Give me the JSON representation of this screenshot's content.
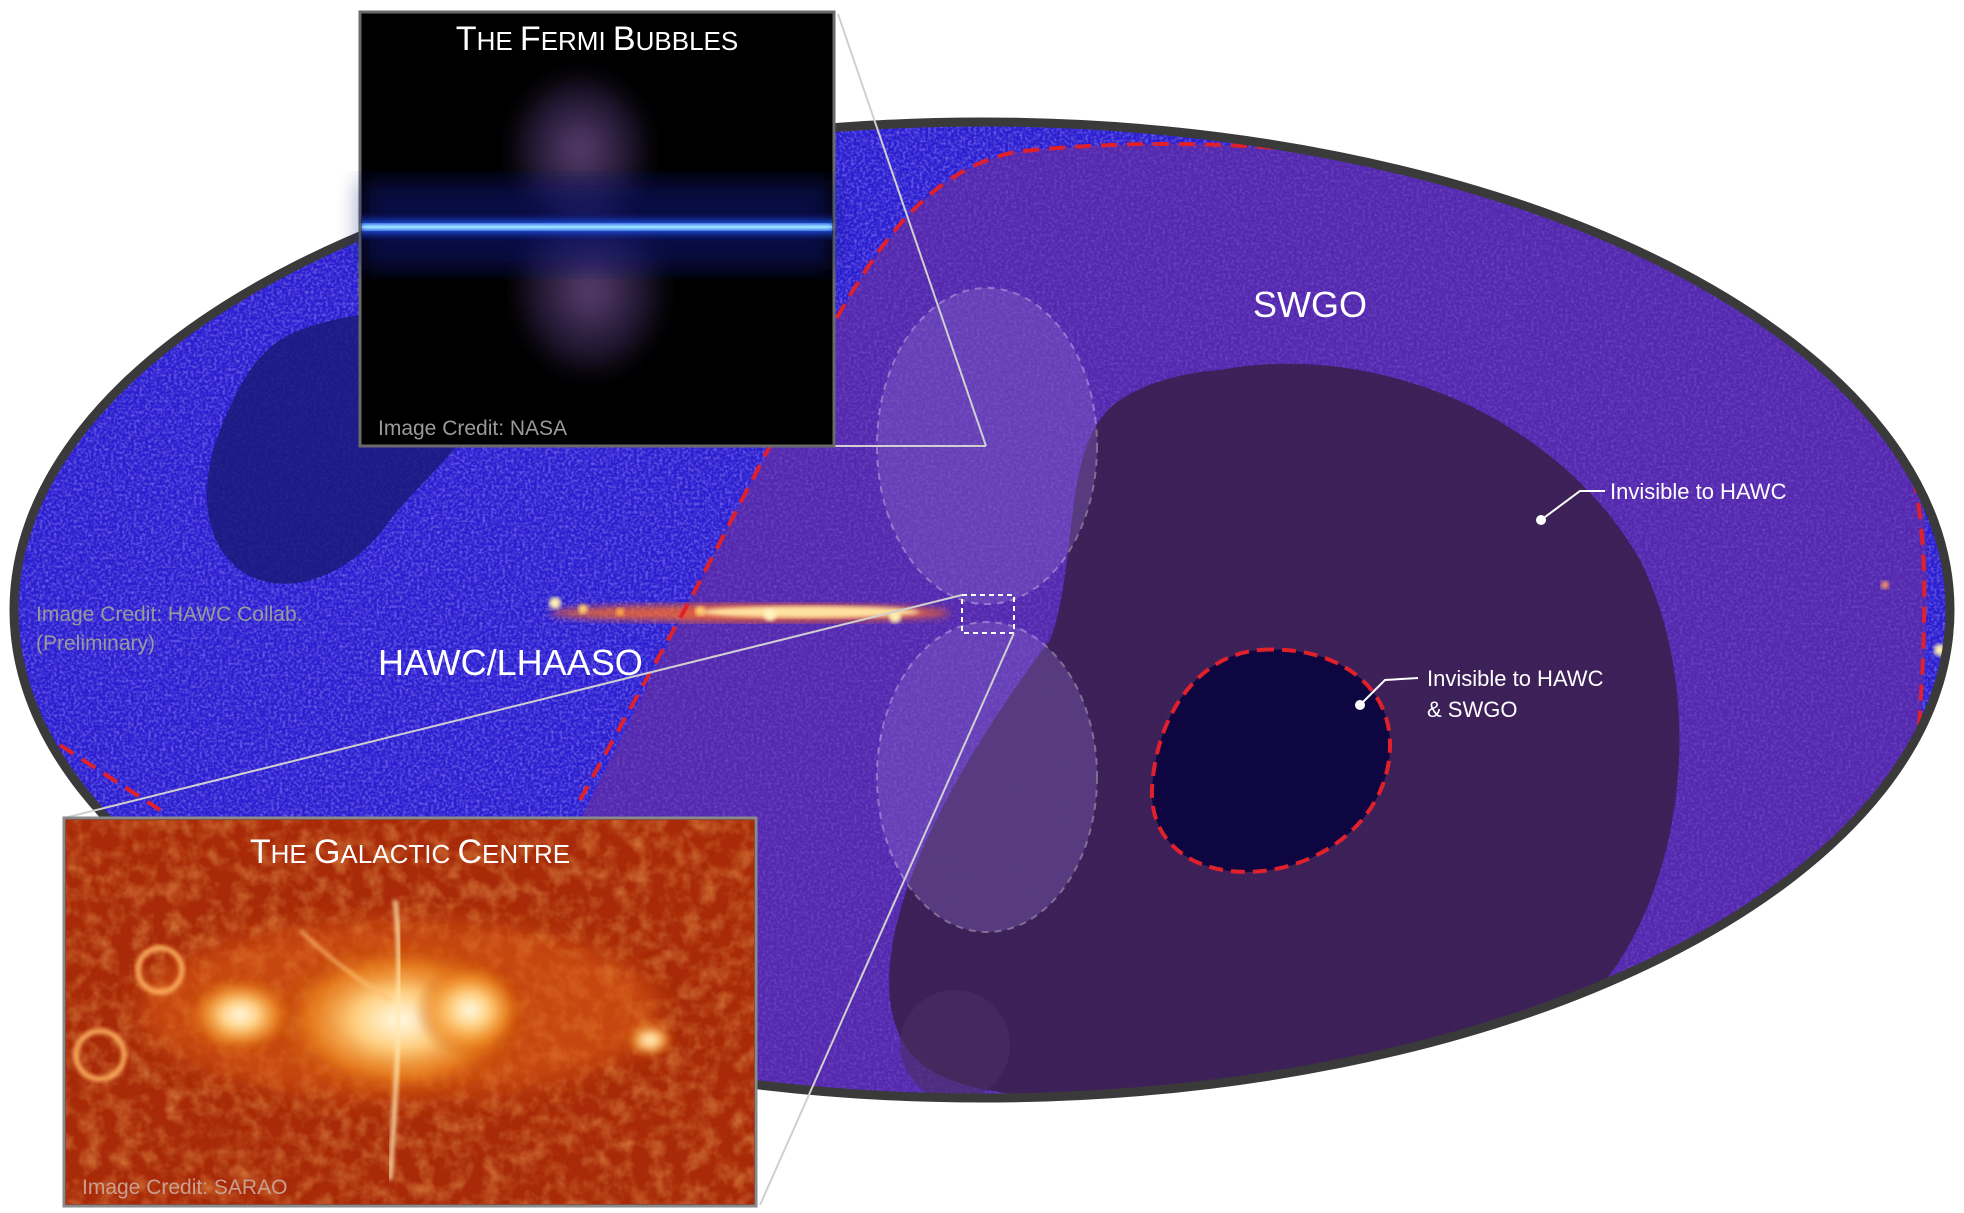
{
  "labels": {
    "swgo": "SWGO",
    "hawc_lhaaso": "HAWC/LHAASO",
    "invisible_hawc": "Invisible to HAWC",
    "invisible_both_line1": "Invisible to HAWC",
    "invisible_both_line2": "& SWGO"
  },
  "credits": {
    "hawc_line1": "Image Credit: HAWC Collab.",
    "hawc_line2": "(Preliminary)",
    "nasa": "Image Credit: NASA",
    "sarao": "Image Credit: SARAO"
  },
  "insets": {
    "fermi": {
      "title_prefix_1": "T",
      "title_rest_1": "HE ",
      "title_prefix_2": "F",
      "title_rest_2": "ERMI ",
      "title_prefix_3": "B",
      "title_rest_3": "UBBLES"
    },
    "galactic": {
      "title_prefix_1": "T",
      "title_rest_1": "HE ",
      "title_prefix_2": "G",
      "title_rest_2": "ALACTIC ",
      "title_prefix_3": "C",
      "title_rest_3": "ENTRE"
    }
  },
  "colors": {
    "sky_blue": "#2a1fd0",
    "sky_region": "#4a1f9c",
    "dark_region": "#3b2050",
    "hole": "#0d0640",
    "boundary_red": "#e0202a",
    "frame_gray": "#3a3a3a"
  }
}
